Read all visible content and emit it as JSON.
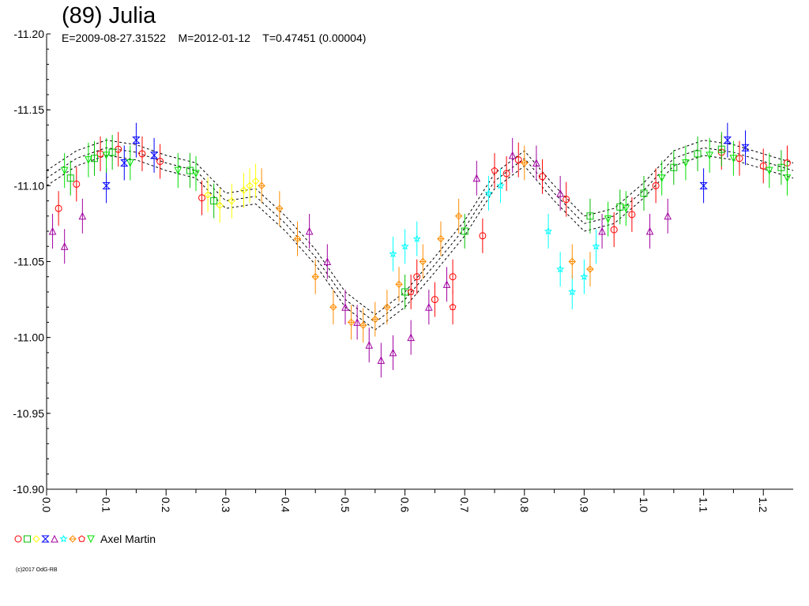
{
  "header": {
    "title": "(89) Julia",
    "subtitle": "E=2009-08-27.31522    M=2012-01-12    T=0.47451 (0.00004)"
  },
  "legend": {
    "observer": "Axel Martin",
    "markers": [
      {
        "shape": "circle",
        "color": "#ff0000"
      },
      {
        "shape": "square",
        "color": "#00c000"
      },
      {
        "shape": "diamond",
        "color": "#ffff00"
      },
      {
        "shape": "hourglass",
        "color": "#0000ff"
      },
      {
        "shape": "triangle",
        "color": "#a000a0"
      },
      {
        "shape": "star",
        "color": "#00ffff"
      },
      {
        "shape": "cross-diamond",
        "color": "#ff8c00"
      },
      {
        "shape": "pentagon",
        "color": "#ff0000"
      },
      {
        "shape": "triangle-down",
        "color": "#00e000"
      }
    ]
  },
  "copyright": "(c)2017 OdG-RB",
  "chart_data": {
    "type": "scatter",
    "xlabel": "",
    "ylabel": "",
    "xlim": [
      0.0,
      1.25
    ],
    "ylim": [
      -11.2,
      -10.9
    ],
    "x_ticks": [
      "0.0",
      "0.1",
      "0.2",
      "0.3",
      "0.4",
      "0.5",
      "0.6",
      "0.7",
      "0.8",
      "0.9",
      "1.0",
      "1.1",
      "1.2"
    ],
    "y_ticks": [
      "-11.20",
      "-11.15",
      "-11.10",
      "-11.05",
      "-11.00",
      "-10.95",
      "-10.90"
    ],
    "y_inverted": true,
    "fit_curve": {
      "x": [
        0.0,
        0.05,
        0.1,
        0.15,
        0.2,
        0.25,
        0.3,
        0.35,
        0.4,
        0.45,
        0.5,
        0.55,
        0.6,
        0.65,
        0.7,
        0.75,
        0.8,
        0.85,
        0.9,
        0.95,
        1.0,
        1.05,
        1.1,
        1.15,
        1.2,
        1.25
      ],
      "y": [
        -11.105,
        -11.118,
        -11.125,
        -11.122,
        -11.115,
        -11.11,
        -11.09,
        -11.093,
        -11.075,
        -11.053,
        -11.025,
        -11.01,
        -11.025,
        -11.048,
        -11.072,
        -11.103,
        -11.118,
        -11.095,
        -11.075,
        -11.08,
        -11.097,
        -11.118,
        -11.125,
        -11.122,
        -11.116,
        -11.11
      ],
      "offset": 0.005
    },
    "series": [
      {
        "color": "#ff0000",
        "marker": "circle",
        "x": [
          0.02,
          0.05,
          0.09,
          0.12,
          0.16,
          0.19,
          0.26,
          0.73,
          0.77,
          0.79,
          0.83,
          0.87,
          0.95,
          0.98,
          1.02,
          1.13,
          1.16,
          1.2,
          1.24,
          0.62,
          0.65,
          0.68
        ],
        "y": [
          -11.085,
          -11.101,
          -11.121,
          -11.124,
          -11.121,
          -11.116,
          -11.092,
          -11.067,
          -11.108,
          -11.117,
          -11.106,
          -11.091,
          -11.071,
          -11.081,
          -11.1,
          -11.122,
          -11.118,
          -11.113,
          -11.115,
          -11.04,
          -11.025,
          -11.04
        ]
      },
      {
        "color": "#00c000",
        "marker": "square",
        "x": [
          0.04,
          0.08,
          0.11,
          0.24,
          0.28,
          0.91,
          0.96,
          1.0,
          1.05,
          1.09,
          1.13,
          1.23,
          0.6,
          0.7
        ],
        "y": [
          -11.105,
          -11.118,
          -11.122,
          -11.11,
          -11.09,
          -11.08,
          -11.086,
          -11.095,
          -11.112,
          -11.121,
          -11.124,
          -11.112,
          -11.03,
          -11.07
        ]
      },
      {
        "color": "#ffff00",
        "marker": "diamond",
        "x": [
          0.27,
          0.29,
          0.31,
          0.33,
          0.34,
          0.35
        ],
        "y": [
          -11.094,
          -11.087,
          -11.09,
          -11.097,
          -11.1,
          -11.103
        ]
      },
      {
        "color": "#0000ff",
        "marker": "hourglass",
        "x": [
          0.1,
          0.13,
          0.15,
          0.18,
          1.1,
          1.14,
          1.17
        ],
        "y": [
          -11.1,
          -11.115,
          -11.13,
          -11.12,
          -11.1,
          -11.13,
          -11.125
        ]
      },
      {
        "color": "#a000a0",
        "marker": "triangle",
        "x": [
          0.01,
          0.03,
          0.06,
          0.44,
          0.47,
          0.5,
          0.52,
          0.54,
          0.56,
          0.58,
          0.61,
          0.64,
          0.67,
          0.72,
          0.78,
          0.82,
          0.86,
          0.93,
          1.01,
          1.04
        ],
        "y": [
          -11.07,
          -11.06,
          -11.08,
          -11.07,
          -11.05,
          -11.02,
          -11.01,
          -10.995,
          -10.985,
          -10.99,
          -11.0,
          -11.02,
          -11.035,
          -11.105,
          -11.12,
          -11.115,
          -11.095,
          -11.07,
          -11.07,
          -11.08
        ]
      },
      {
        "color": "#00ffff",
        "marker": "star",
        "x": [
          0.58,
          0.6,
          0.62,
          0.74,
          0.76,
          0.84,
          0.86,
          0.88,
          0.9,
          0.92
        ],
        "y": [
          -11.055,
          -11.06,
          -11.065,
          -11.095,
          -11.1,
          -11.07,
          -11.045,
          -11.03,
          -11.04,
          -11.06
        ]
      },
      {
        "color": "#ff8c00",
        "marker": "cross-diamond",
        "x": [
          0.36,
          0.39,
          0.42,
          0.45,
          0.48,
          0.51,
          0.53,
          0.55,
          0.57,
          0.59,
          0.63,
          0.66,
          0.69,
          0.8,
          0.88,
          0.91
        ],
        "y": [
          -11.1,
          -11.085,
          -11.065,
          -11.04,
          -11.02,
          -11.01,
          -11.008,
          -11.012,
          -11.02,
          -11.035,
          -11.05,
          -11.065,
          -11.08,
          -11.115,
          -11.05,
          -11.045
        ]
      },
      {
        "color": "#ff0000",
        "marker": "pentagon",
        "x": [
          0.61,
          0.68,
          0.75
        ],
        "y": [
          -11.03,
          -11.02,
          -11.11
        ]
      },
      {
        "color": "#00e000",
        "marker": "triangle-down",
        "x": [
          0.03,
          0.07,
          0.1,
          0.14,
          0.22,
          0.25,
          0.94,
          0.97,
          1.03,
          1.07,
          1.11,
          1.15,
          1.21,
          1.24
        ],
        "y": [
          -11.11,
          -11.117,
          -11.12,
          -11.115,
          -11.11,
          -11.108,
          -11.078,
          -11.085,
          -11.105,
          -11.115,
          -11.12,
          -11.118,
          -11.11,
          -11.105
        ]
      }
    ]
  }
}
